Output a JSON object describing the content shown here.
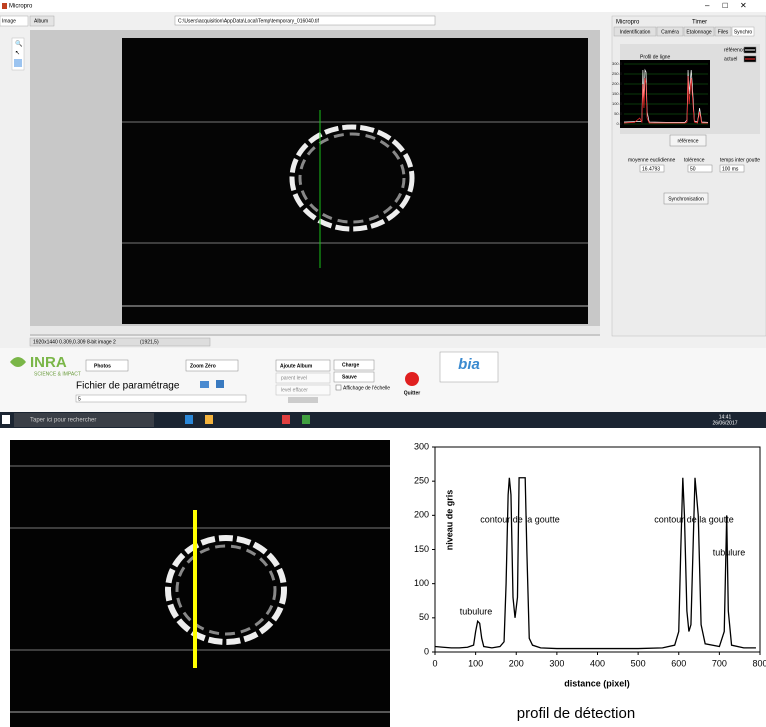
{
  "window": {
    "title": "Micropro",
    "tabs": [
      "Image",
      "Album"
    ],
    "file_path": "C:\\Users\\acquisition\\AppData\\Local\\Temp\\temporary_016040.tif",
    "status": "1920x1440 0.309,0.309 8-bit image 2",
    "coords": "(1921,5)",
    "logo": "INRA",
    "logo_tagline": "SCIENCE & IMPACT",
    "buttons": {
      "photos": "Photos",
      "zoom": "Zoom Zéro",
      "add_album": "Ajoute Album",
      "parent_level": "parent level",
      "level_erase": "level effacer",
      "load": "Charge",
      "save": "Sauve",
      "quit": "Quitter",
      "reference": "référence",
      "sync": "Synchronisation"
    },
    "param_label": "Fichier de paramétrage",
    "param_value": "5",
    "scale_checkbox": "Affichage de l'échelle",
    "bia": "bia",
    "side_title": "Micropro",
    "timer": "Timer",
    "side_tabs": [
      "Indentification",
      "Caméra",
      "Etalonnage",
      "Files",
      "Synchro"
    ],
    "fields": [
      {
        "label": "moyenne euclidienne",
        "value": "16.4793"
      },
      {
        "label": "tolérence",
        "value": "50"
      },
      {
        "label": "temps inter goutte",
        "value": "100 ms"
      }
    ]
  },
  "taskbar": {
    "search": "Taper ici pour rechercher",
    "time": "14:41",
    "date": "26/06/2017"
  },
  "caption": "profil de détection",
  "chart_data": [
    {
      "type": "line",
      "title": "Profil de ligne",
      "xlim": [
        0,
        800
      ],
      "ylim": [
        0,
        300
      ],
      "yticks": [
        {
          "value": 0,
          "label": "0.0"
        },
        {
          "value": 50,
          "label": "50.0"
        },
        {
          "value": 100,
          "label": "100.0"
        },
        {
          "value": 150,
          "label": "150.0"
        },
        {
          "value": 200,
          "label": "200.0"
        },
        {
          "value": 250,
          "label": "250.0"
        },
        {
          "value": 300,
          "label": "300.0"
        }
      ],
      "grid": true,
      "legend": "top-right",
      "x": [
        0,
        100,
        150,
        170,
        180,
        190,
        200,
        210,
        220,
        240,
        400,
        580,
        600,
        610,
        620,
        640,
        650,
        670,
        700,
        720,
        740,
        800
      ],
      "series": [
        {
          "name": "référence",
          "color": "#ffffff",
          "values": [
            10,
            12,
            12,
            15,
            270,
            120,
            270,
            260,
            60,
            10,
            8,
            8,
            20,
            270,
            150,
            270,
            200,
            15,
            10,
            80,
            10,
            8
          ]
        },
        {
          "name": "actuel",
          "color": "#ff3030",
          "values": [
            5,
            8,
            30,
            10,
            200,
            80,
            230,
            200,
            30,
            5,
            5,
            5,
            10,
            240,
            100,
            230,
            150,
            10,
            5,
            60,
            5,
            5
          ]
        }
      ]
    },
    {
      "type": "line",
      "xlabel": "distance (pixel)",
      "ylabel": "niveau de gris",
      "xlim": [
        0,
        800
      ],
      "ylim": [
        0,
        300
      ],
      "xticks": [
        0,
        100,
        200,
        300,
        400,
        500,
        600,
        700,
        800
      ],
      "yticks": [
        0,
        50,
        100,
        150,
        200,
        250,
        300
      ],
      "grid": false,
      "annotations": [
        "tubulure",
        "contour de la goutte",
        "contour de la goutte",
        "tubulure"
      ],
      "x": [
        0,
        20,
        40,
        60,
        80,
        95,
        100,
        105,
        110,
        115,
        120,
        140,
        160,
        170,
        175,
        180,
        183,
        187,
        192,
        197,
        203,
        207,
        215,
        222,
        226,
        232,
        240,
        260,
        300,
        400,
        500,
        560,
        590,
        600,
        605,
        610,
        614,
        620,
        625,
        630,
        640,
        648,
        655,
        665,
        700,
        712,
        718,
        722,
        730,
        760,
        790
      ],
      "series": [
        {
          "color": "#000000",
          "values": [
            8,
            7,
            6,
            6,
            7,
            10,
            30,
            45,
            42,
            20,
            8,
            6,
            8,
            15,
            100,
            230,
            255,
            230,
            80,
            50,
            80,
            255,
            255,
            255,
            150,
            20,
            10,
            6,
            5,
            5,
            5,
            6,
            10,
            30,
            150,
            255,
            200,
            60,
            30,
            40,
            255,
            200,
            40,
            12,
            8,
            30,
            200,
            60,
            10,
            6,
            6
          ]
        }
      ]
    }
  ]
}
